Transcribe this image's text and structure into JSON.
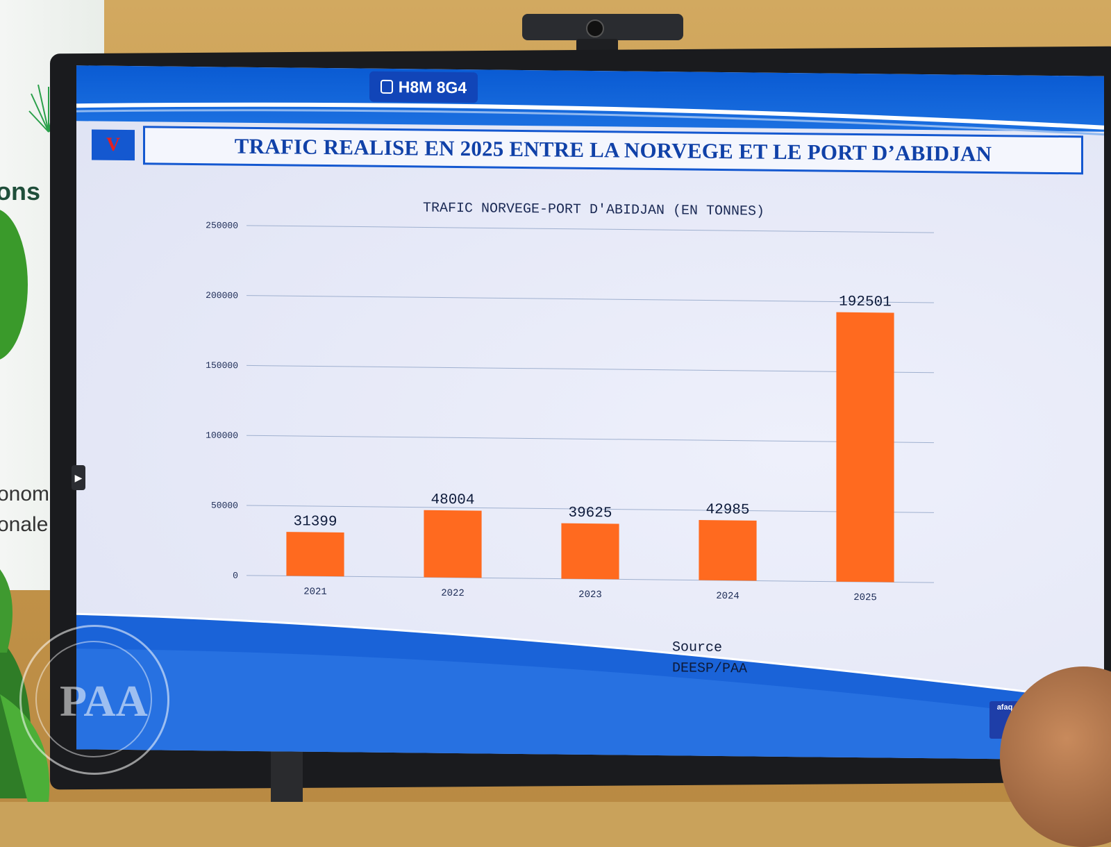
{
  "screen": {
    "tag": {
      "label": "H8M 8G4"
    },
    "section_letter": "V",
    "slide_title": "TRAFIC REALISE EN 2025 ENTRE LA NORVEGE ET LE PORT D’ABIDJAN",
    "source_line1": "Source",
    "source_line2": "DEESP/PAA"
  },
  "banner": {
    "fragment_top": "ons",
    "fragment_line1": "onomi",
    "fragment_line2": "onale !"
  },
  "seal": {
    "monogram": "PAA"
  },
  "logo": {
    "text": "afaq"
  },
  "chart_data": {
    "type": "bar",
    "title": "TRAFIC NORVEGE-PORT D'ABIDJAN (EN TONNES)",
    "categories": [
      "2021",
      "2022",
      "2023",
      "2024",
      "2025"
    ],
    "values": [
      31399,
      48004,
      39625,
      42985,
      192501
    ],
    "data_labels": [
      "31399",
      "48004",
      "39625",
      "42985",
      "192501"
    ],
    "ylim": [
      0,
      250000
    ],
    "yticks": [
      0,
      50000,
      100000,
      150000,
      200000,
      250000
    ],
    "ytick_labels": [
      "0",
      "50000",
      "100000",
      "150000",
      "200000",
      "250000"
    ],
    "grid": true,
    "bar_color": "#ff6a1f"
  },
  "colors": {
    "slide_blue": "#1458d0",
    "title_text": "#1041a8",
    "accent_red": "#e62020"
  }
}
